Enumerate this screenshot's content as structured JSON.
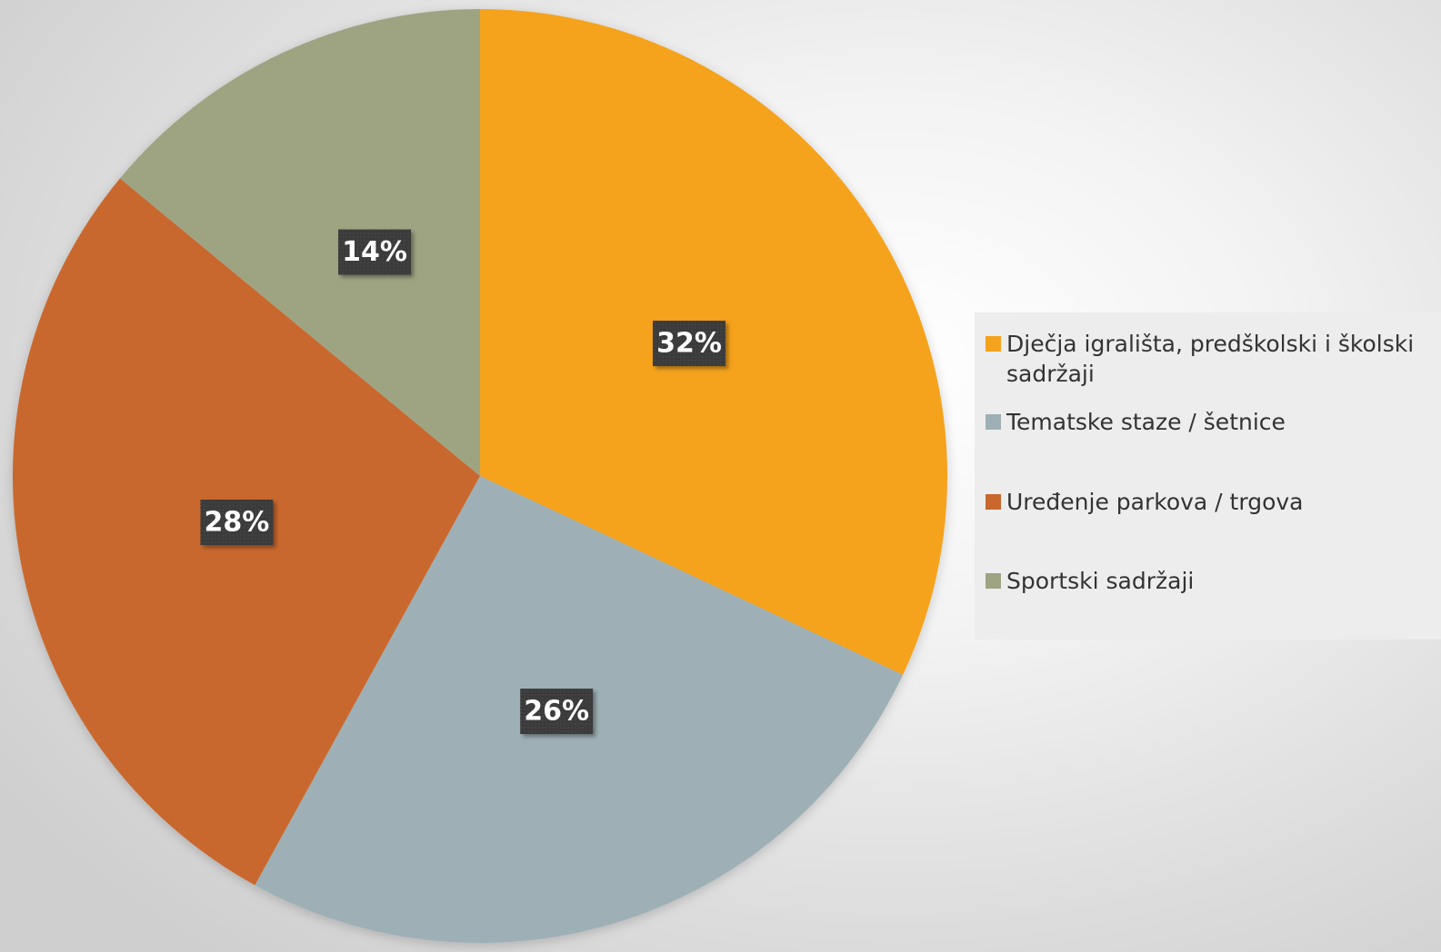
{
  "chart_data": {
    "type": "pie",
    "title": "",
    "categories": [
      "Dječja igrališta, predškolski i školski sadržaji",
      "Tematske staze / šetnice",
      "Uređenje parkova / trgova",
      "Sportski sadržaji"
    ],
    "values": [
      32,
      26,
      28,
      14
    ],
    "labels": [
      "32%",
      "26%",
      "28%",
      "14%"
    ],
    "colors": [
      "#f5a21f",
      "#9eb0b5",
      "#c9672f",
      "#9ea482"
    ],
    "label_box_color": "#3a3a3a",
    "start_angle_deg": 0,
    "direction": "clockwise",
    "legend_position": "right"
  },
  "legend": {
    "items": [
      "Dječja igrališta, predškolski i školski sadržaji",
      "Tematske staze / šetnice",
      "Uređenje parkova / trgova",
      "Sportski sadržaji"
    ]
  }
}
